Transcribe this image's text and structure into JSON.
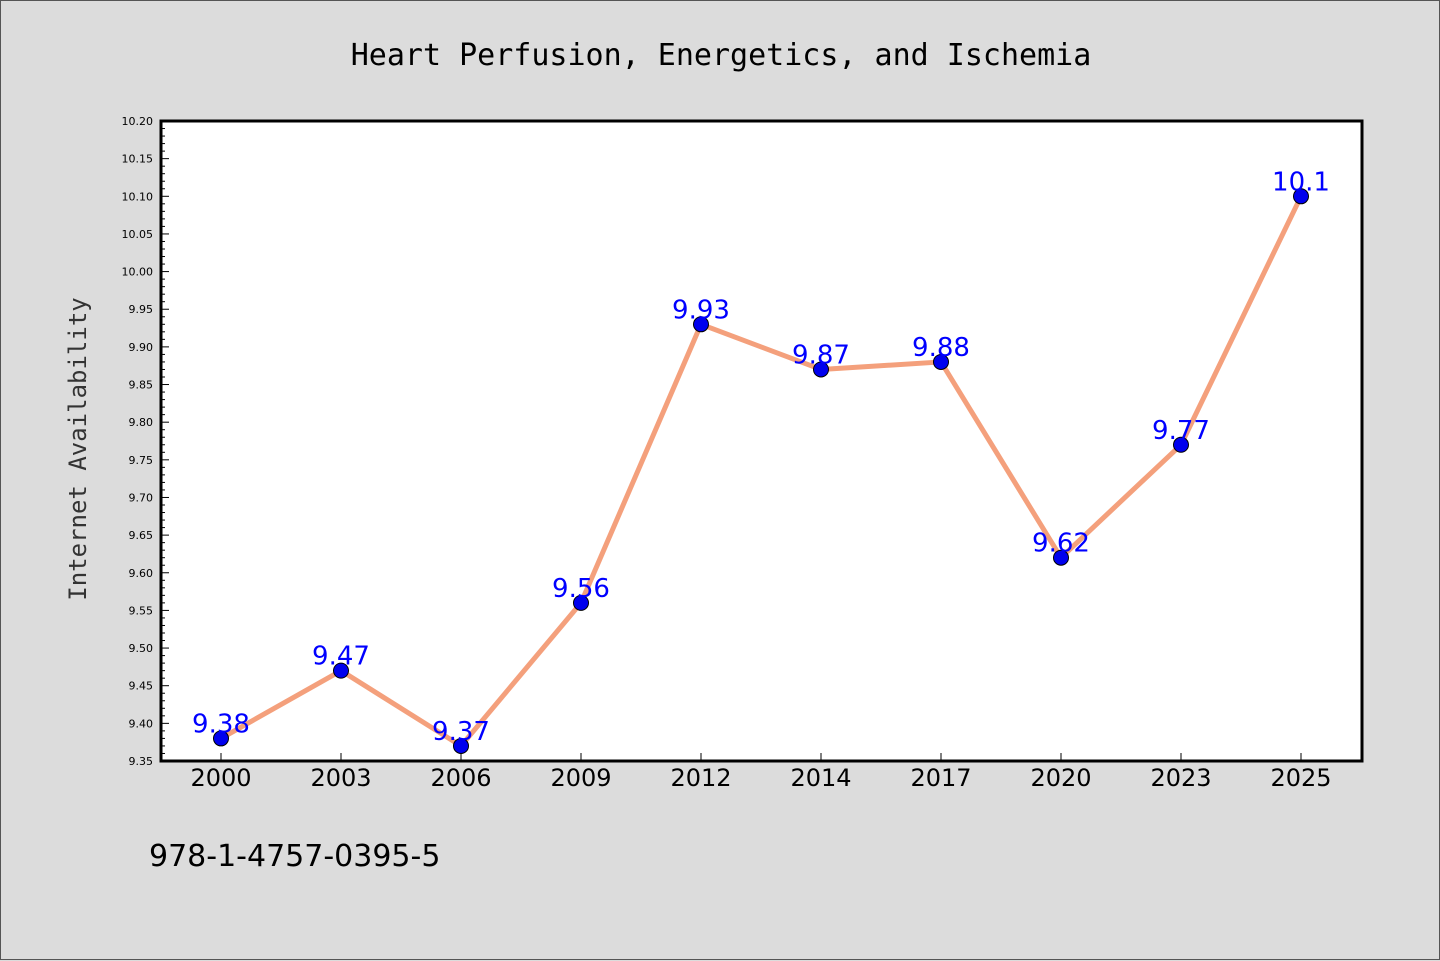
{
  "chart_data": {
    "type": "line",
    "title": "Heart Perfusion, Energetics, and Ischemia",
    "ylabel": "Internet Availability",
    "xlabel": "",
    "categories": [
      "2000",
      "2003",
      "2006",
      "2009",
      "2012",
      "2014",
      "2017",
      "2020",
      "2023",
      "2025"
    ],
    "series": [
      {
        "values": [
          9.38,
          9.47,
          9.37,
          9.56,
          9.93,
          9.87,
          9.88,
          9.62,
          9.77,
          10.1
        ],
        "data_labels": [
          "9.38",
          "9.47",
          "9.37",
          "9.56",
          "9.93",
          "9.87",
          "9.88",
          "9.62",
          "9.77",
          "10.1"
        ],
        "line_color": "#f4a07c",
        "marker_color": "#0000ee"
      }
    ],
    "ylim": [
      9.35,
      10.2
    ],
    "yticks": [
      "9.35",
      "9.40",
      "9.45",
      "9.50",
      "9.55",
      "9.60",
      "9.65",
      "9.70",
      "9.75",
      "9.80",
      "9.85",
      "9.90",
      "9.95",
      "10.00",
      "10.05",
      "10.10",
      "10.15",
      "10.20"
    ],
    "grid": false,
    "legend": "none"
  },
  "footer": {
    "isbn": "978-1-4757-0395-5"
  },
  "colors": {
    "background": "#dcdcdc",
    "plot_background": "#ffffff",
    "label_color": "#0000ff"
  }
}
